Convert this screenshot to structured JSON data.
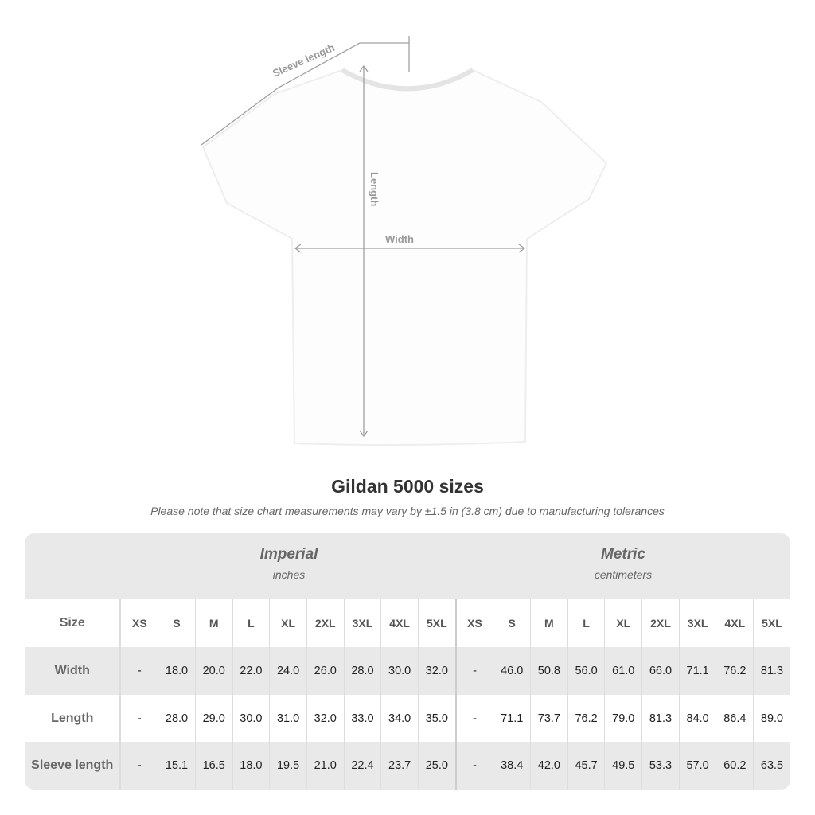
{
  "diagram": {
    "sleeve_label": "Sleeve length",
    "length_label": "Length",
    "width_label": "Width"
  },
  "title": "Gildan 5000 sizes",
  "note": "Please note that size chart measurements may vary by ±1.5 in (3.8 cm) due to manufacturing tolerances",
  "imperial": {
    "name": "Imperial",
    "unit": "inches"
  },
  "metric": {
    "name": "Metric",
    "unit": "centimeters"
  },
  "size_label": "Size",
  "sizes": [
    "XS",
    "S",
    "M",
    "L",
    "XL",
    "2XL",
    "3XL",
    "4XL",
    "5XL"
  ],
  "rows": [
    {
      "label": "Width",
      "imperial": [
        "-",
        "18.0",
        "20.0",
        "22.0",
        "24.0",
        "26.0",
        "28.0",
        "30.0",
        "32.0"
      ],
      "metric": [
        "-",
        "46.0",
        "50.8",
        "56.0",
        "61.0",
        "66.0",
        "71.1",
        "76.2",
        "81.3"
      ]
    },
    {
      "label": "Length",
      "imperial": [
        "-",
        "28.0",
        "29.0",
        "30.0",
        "31.0",
        "32.0",
        "33.0",
        "34.0",
        "35.0"
      ],
      "metric": [
        "-",
        "71.1",
        "73.7",
        "76.2",
        "79.0",
        "81.3",
        "84.0",
        "86.4",
        "89.0"
      ]
    },
    {
      "label": "Sleeve length",
      "imperial": [
        "-",
        "15.1",
        "16.5",
        "18.0",
        "19.5",
        "21.0",
        "22.4",
        "23.7",
        "25.0"
      ],
      "metric": [
        "-",
        "38.4",
        "42.0",
        "45.7",
        "49.5",
        "53.3",
        "57.0",
        "60.2",
        "63.5"
      ]
    }
  ]
}
